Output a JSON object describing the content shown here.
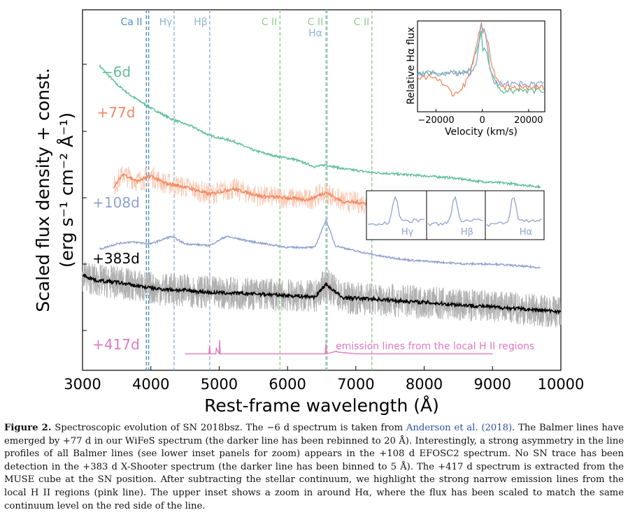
{
  "chart_data": {
    "type": "line",
    "xlabel": "Rest-frame wavelength (Å)",
    "ylabel_line1": "Scaled flux density + const.",
    "ylabel_line2": "(erg s⁻¹ cm⁻² Å⁻¹)",
    "xlim": [
      3000,
      10000
    ],
    "xticks": [
      "3000",
      "4000",
      "5000",
      "6000",
      "7000",
      "8000",
      "9000",
      "10000"
    ],
    "line_markers": [
      {
        "label": "Ca II",
        "wavelengths": [
          3934,
          3968
        ],
        "color": "#4a8fc0"
      },
      {
        "label": "Hγ",
        "wavelengths": [
          4340
        ],
        "color": "#8fb3d6"
      },
      {
        "label": "Hβ",
        "wavelengths": [
          4861
        ],
        "color": "#8fb3d6"
      },
      {
        "label": "C II",
        "wavelengths": [
          5890
        ],
        "color": "#8fd08a"
      },
      {
        "label": "C II",
        "wavelengths": [
          6580
        ],
        "color": "#8fd08a"
      },
      {
        "label": "Hα",
        "wavelengths": [
          6563
        ],
        "color": "#8fb3d6"
      },
      {
        "label": "C II",
        "wavelengths": [
          7234
        ],
        "color": "#8fd08a"
      }
    ],
    "series": [
      {
        "name": "−6d",
        "color": "#5fbf98",
        "x": [
          3250,
          3500,
          3700,
          4000,
          4300,
          4600,
          4861,
          5200,
          5500,
          5800,
          6100,
          6400,
          6563,
          6800,
          7200,
          7600,
          8000,
          8400,
          8800,
          9200,
          9700
        ],
        "y": [
          9.9,
          9.4,
          9.1,
          8.75,
          8.45,
          8.25,
          8.0,
          7.85,
          7.6,
          7.45,
          7.35,
          7.15,
          7.2,
          7.1,
          7.0,
          6.95,
          6.9,
          6.85,
          6.75,
          6.7,
          6.6
        ]
      },
      {
        "name": "+77d",
        "color": "#f08a62",
        "x": [
          3450,
          3600,
          3800,
          4000,
          4200,
          4500,
          4861,
          5200,
          5600,
          6000,
          6300,
          6563,
          6800,
          7200,
          7600,
          8000,
          8400,
          8800,
          9300
        ],
        "y": [
          6.6,
          6.95,
          6.75,
          6.9,
          6.7,
          6.6,
          6.4,
          6.55,
          6.35,
          6.3,
          6.25,
          6.45,
          6.2,
          6.15,
          5.95,
          6.05,
          5.9,
          5.85,
          5.75
        ]
      },
      {
        "name": "+108d",
        "color": "#8fa3cf",
        "x": [
          3250,
          3500,
          3700,
          4000,
          4300,
          4500,
          4861,
          5100,
          5500,
          6000,
          6400,
          6563,
          6700,
          7000,
          7400,
          7800,
          8200,
          8600,
          9000,
          9700
        ],
        "y": [
          4.9,
          5.05,
          5.1,
          5.05,
          5.25,
          5.05,
          5.0,
          5.25,
          5.1,
          4.95,
          4.95,
          5.7,
          5.0,
          4.85,
          4.7,
          4.6,
          4.55,
          4.5,
          4.5,
          4.4
        ]
      },
      {
        "name": "+383d",
        "color": "#000000",
        "x": [
          3000,
          3200,
          3500,
          3800,
          4100,
          4500,
          4861,
          5200,
          5600,
          6000,
          6400,
          6563,
          6800,
          7200,
          7600,
          8000,
          8400,
          8800,
          9200,
          9600,
          10000
        ],
        "y": [
          4.2,
          4.05,
          4.0,
          3.9,
          3.82,
          3.78,
          3.72,
          3.7,
          3.68,
          3.64,
          3.6,
          3.95,
          3.58,
          3.55,
          3.5,
          3.45,
          3.4,
          3.35,
          3.3,
          3.25,
          3.2
        ]
      },
      {
        "name": "+417d",
        "color": "#e377c2",
        "x": [
          4500,
          4850,
          4861,
          4870,
          4950,
          4959,
          5000,
          5007,
          5015,
          5500,
          6000,
          6550,
          6563,
          6575,
          6716,
          6731,
          7000,
          8000,
          9000
        ],
        "y": [
          2.05,
          2.05,
          2.28,
          2.05,
          2.05,
          2.2,
          2.05,
          2.42,
          2.05,
          2.05,
          2.05,
          2.05,
          2.33,
          2.05,
          2.12,
          2.1,
          2.05,
          2.05,
          2.05
        ]
      }
    ],
    "annotations": {
      "emission": "emission lines from the local H II regions"
    },
    "inset_top": {
      "ylabel": "Relative Hα flux",
      "xlabel": "Velocity (km/s)",
      "xticks": [
        "−20000",
        "0",
        "20000"
      ],
      "xlim": [
        -28000,
        27000
      ]
    },
    "inset_bottom": [
      {
        "label": "Hγ"
      },
      {
        "label": "Hβ"
      },
      {
        "label": "Hα"
      }
    ]
  },
  "caption": {
    "label": "Figure 2.",
    "part1": " Spectroscopic evolution of SN 2018bsz. The −6 d spectrum is taken from ",
    "cite": "Anderson et al. (2018)",
    "part2": ". The Balmer lines have emerged by +77 d in our WiFeS spectrum (the darker line has been rebinned to 20 Å). Interestingly, a strong asymmetry in the line profiles of all Balmer lines (see lower inset panels for zoom) appears in the +108 d EFOSC2 spectrum. No SN trace has been detection in the +383 d X-Shooter spectrum (the darker line has been binned to 5 Å). The +417 d spectrum is extracted from the MUSE cube at the SN position. After subtracting the stellar continuum, we highlight the strong narrow emission lines from the local H II regions (pink line). The upper inset shows a zoom in around Hα, where the flux has been scaled to match the same continuum level on the red side of the line."
  }
}
